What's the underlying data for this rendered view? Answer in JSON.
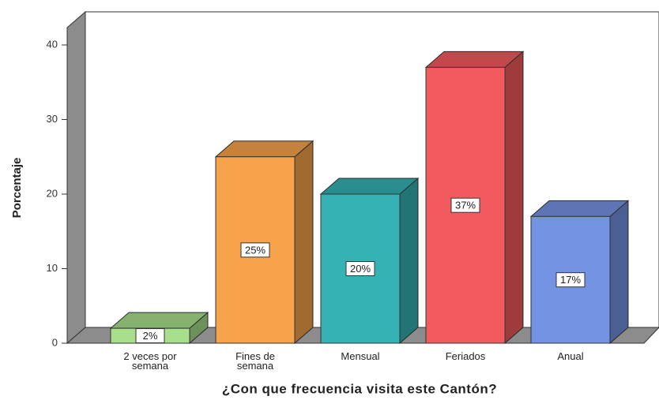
{
  "chart_data": {
    "type": "bar3d",
    "title": "¿Con que frecuencia visita este Cantón?",
    "y_label": "Porcentaje",
    "categories": [
      "2 veces por semana",
      "Fines de semana",
      "Mensual",
      "Feriados",
      "Anual"
    ],
    "values": [
      2,
      25,
      20,
      37,
      17
    ],
    "value_labels": [
      "2%",
      "25%",
      "20%",
      "37%",
      "17%"
    ],
    "colors": [
      "#a8df8c",
      "#f7a34c",
      "#35b2b4",
      "#f25b5e",
      "#7593e3"
    ],
    "ylim": [
      0,
      40
    ],
    "yticks": [
      0,
      10,
      20,
      30,
      40
    ]
  }
}
